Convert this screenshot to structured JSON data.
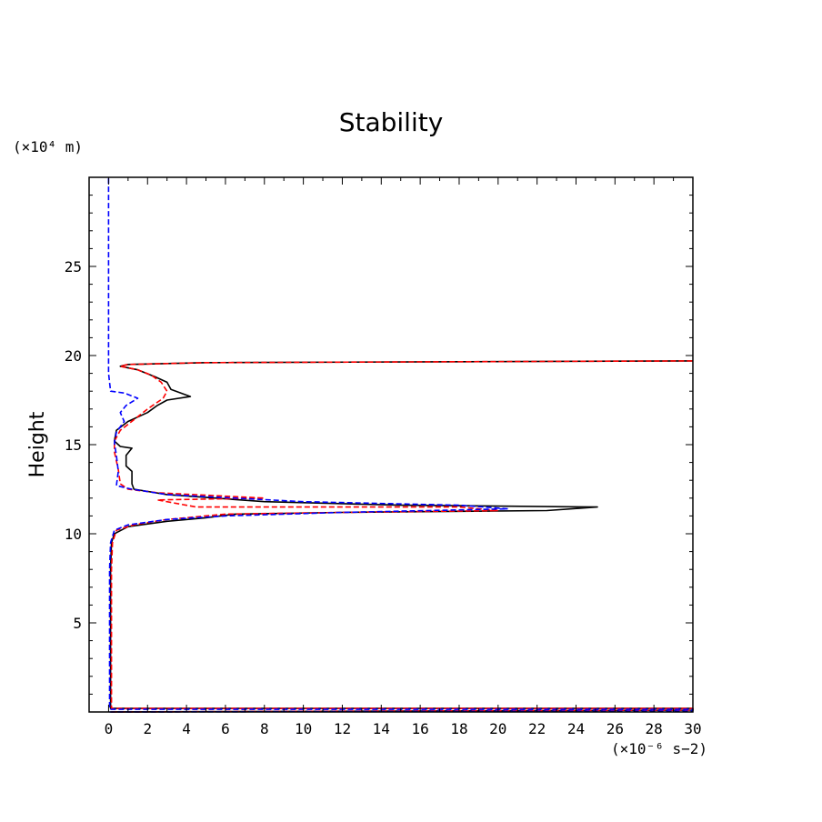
{
  "chart_data": {
    "type": "line",
    "title": "Stability",
    "xlabel": "",
    "xunit": "(×10⁻⁶ s−2)",
    "ylabel": "Height",
    "yunit": "(×10⁴ m)",
    "xlim": [
      -1,
      30
    ],
    "ylim": [
      0,
      30
    ],
    "xticks": [
      0,
      2,
      4,
      6,
      8,
      10,
      12,
      14,
      16,
      18,
      20,
      22,
      24,
      26,
      28,
      30
    ],
    "yticks": [
      5,
      10,
      15,
      20,
      25
    ],
    "grid": false,
    "legend": "none",
    "series": [
      {
        "color": "#000000",
        "dash": "solid",
        "points": [
          [
            0.1,
            0.0
          ],
          [
            30,
            0.1
          ],
          [
            30,
            0.2
          ],
          [
            0.1,
            0.2
          ],
          [
            0.1,
            2.0
          ],
          [
            0.1,
            5.0
          ],
          [
            0.1,
            8.0
          ],
          [
            0.15,
            9.5
          ],
          [
            0.3,
            10.0
          ],
          [
            1.0,
            10.4
          ],
          [
            3.0,
            10.7
          ],
          [
            5.0,
            10.9
          ],
          [
            6.5,
            11.1
          ],
          [
            12.0,
            11.2
          ],
          [
            22.5,
            11.3
          ],
          [
            25.1,
            11.5
          ],
          [
            15.0,
            11.6
          ],
          [
            8.0,
            11.8
          ],
          [
            3.0,
            12.2
          ],
          [
            1.3,
            12.5
          ],
          [
            1.2,
            12.8
          ],
          [
            1.2,
            13.5
          ],
          [
            0.9,
            13.8
          ],
          [
            0.9,
            14.4
          ],
          [
            1.2,
            14.8
          ],
          [
            0.6,
            14.9
          ],
          [
            0.3,
            15.2
          ],
          [
            0.4,
            15.8
          ],
          [
            1.0,
            16.3
          ],
          [
            2.0,
            16.8
          ],
          [
            2.5,
            17.2
          ],
          [
            3.0,
            17.5
          ],
          [
            4.2,
            17.7
          ],
          [
            3.2,
            18.1
          ],
          [
            3.0,
            18.5
          ],
          [
            2.4,
            18.8
          ],
          [
            1.5,
            19.2
          ],
          [
            0.6,
            19.4
          ],
          [
            1.0,
            19.5
          ],
          [
            5.0,
            19.6
          ],
          [
            30,
            19.7
          ]
        ]
      },
      {
        "color": "#ff0000",
        "dash": "dashed",
        "points": [
          [
            0.15,
            0.0
          ],
          [
            30,
            0.1
          ],
          [
            30,
            0.2
          ],
          [
            0.15,
            0.2
          ],
          [
            0.15,
            2.0
          ],
          [
            0.15,
            5.0
          ],
          [
            0.15,
            8.0
          ],
          [
            0.2,
            9.5
          ],
          [
            0.4,
            10.2
          ],
          [
            1.3,
            10.5
          ],
          [
            3.0,
            10.8
          ],
          [
            6.0,
            11.1
          ],
          [
            12.0,
            11.2
          ],
          [
            20.0,
            11.3
          ],
          [
            18.0,
            11.5
          ],
          [
            4.5,
            11.5
          ],
          [
            2.5,
            11.9
          ],
          [
            8.0,
            12.0
          ],
          [
            2.5,
            12.3
          ],
          [
            1.0,
            12.5
          ],
          [
            0.6,
            12.8
          ],
          [
            0.5,
            13.6
          ],
          [
            0.3,
            14.6
          ],
          [
            0.3,
            15.2
          ],
          [
            0.6,
            15.8
          ],
          [
            1.3,
            16.4
          ],
          [
            2.0,
            17.0
          ],
          [
            2.8,
            17.6
          ],
          [
            3.0,
            18.0
          ],
          [
            2.7,
            18.5
          ],
          [
            2.2,
            18.9
          ],
          [
            1.5,
            19.2
          ],
          [
            0.6,
            19.4
          ],
          [
            1.0,
            19.5
          ],
          [
            5.0,
            19.6
          ],
          [
            30,
            19.7
          ]
        ]
      },
      {
        "color": "#0000ff",
        "dash": "dashed",
        "points": [
          [
            0.05,
            0.0
          ],
          [
            30,
            0.05
          ],
          [
            30,
            0.15
          ],
          [
            0.05,
            0.15
          ],
          [
            0.05,
            2.0
          ],
          [
            0.05,
            5.0
          ],
          [
            0.05,
            8.0
          ],
          [
            0.1,
            9.5
          ],
          [
            0.3,
            10.2
          ],
          [
            1.0,
            10.5
          ],
          [
            3.0,
            10.8
          ],
          [
            6.0,
            11.0
          ],
          [
            12.0,
            11.2
          ],
          [
            20.5,
            11.4
          ],
          [
            18.0,
            11.6
          ],
          [
            10.0,
            11.8
          ],
          [
            3.0,
            12.2
          ],
          [
            1.2,
            12.5
          ],
          [
            0.4,
            12.7
          ],
          [
            0.5,
            13.5
          ],
          [
            0.4,
            14.4
          ],
          [
            0.3,
            15.1
          ],
          [
            0.4,
            15.7
          ],
          [
            0.8,
            16.3
          ],
          [
            0.6,
            16.8
          ],
          [
            0.9,
            17.2
          ],
          [
            1.5,
            17.6
          ],
          [
            0.8,
            17.9
          ],
          [
            0.1,
            18.0
          ],
          [
            0.0,
            19.0
          ],
          [
            0.0,
            30.0
          ]
        ]
      }
    ]
  }
}
